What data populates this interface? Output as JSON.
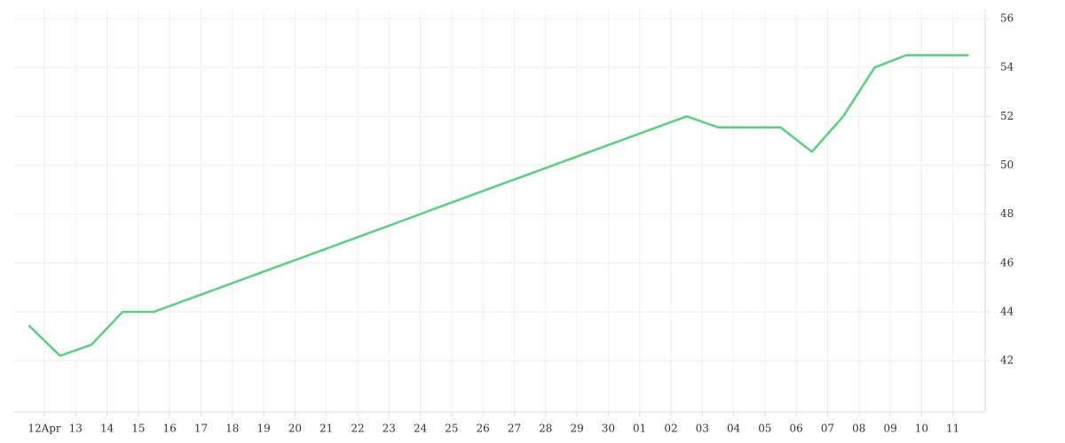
{
  "chart_data": {
    "type": "line",
    "categories": [
      "12Apr",
      "13",
      "14",
      "15",
      "16",
      "17",
      "18",
      "19",
      "20",
      "21",
      "22",
      "23",
      "24",
      "25",
      "26",
      "27",
      "28",
      "29",
      "30",
      "01",
      "02",
      "03",
      "04",
      "05",
      "06",
      "07",
      "08",
      "09",
      "10",
      "11",
      null
    ],
    "series": [
      {
        "name": null,
        "color": "#54d27f",
        "values": [
          43.45,
          42.2,
          42.65,
          44,
          44,
          44.47,
          44.94,
          45.41,
          45.88,
          46.35,
          46.82,
          47.29,
          47.76,
          48.24,
          48.71,
          49.18,
          49.65,
          50.12,
          50.59,
          51.06,
          51.53,
          52,
          51.55,
          51.55,
          51.55,
          50.55,
          52,
          54,
          54.5,
          54.5,
          54.5
        ]
      }
    ],
    "ylim": [
      39.9,
      56.4
    ],
    "yticks": [
      42,
      44,
      46,
      48,
      50,
      52,
      54,
      56
    ],
    "y_axis_side": "right",
    "grid": true
  }
}
